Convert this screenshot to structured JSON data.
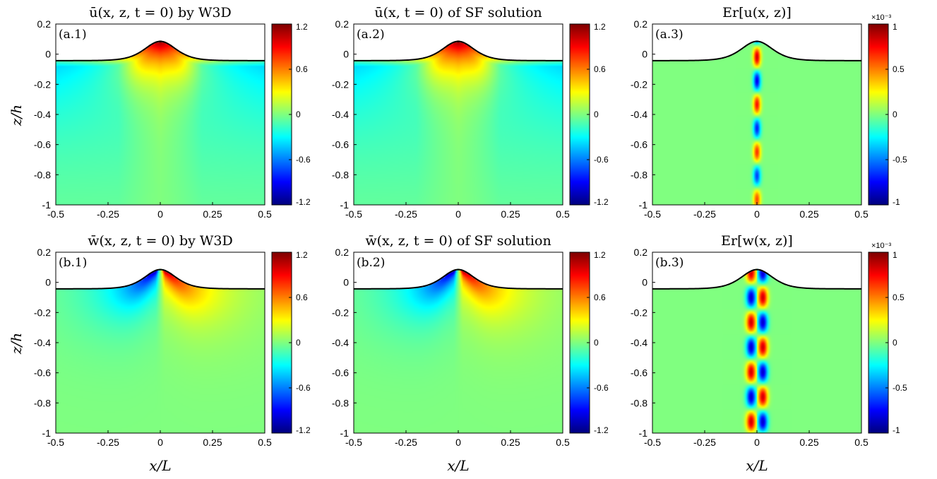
{
  "colors": {
    "frame": "#000000",
    "colormap": "jet",
    "surface_line": "#000000"
  },
  "labels": {
    "xlabel": "x/L",
    "ylabel": "z/h"
  },
  "chart_data": [
    {
      "id": "a1",
      "type": "heatmap",
      "field": "u",
      "source": "W3D",
      "title": "ū(x, z, t = 0) by W3D",
      "annotation": "(a.1)",
      "xlim": [
        -0.5,
        0.5
      ],
      "ylim": [
        -1,
        0.2
      ],
      "xticks": [
        "-0.5",
        "-0.25",
        "0",
        "0.25",
        "0.5"
      ],
      "yticks": [
        "0.2",
        "0",
        "-0.2",
        "-0.4",
        "-0.6",
        "-0.8",
        "-1"
      ],
      "colorbar": {
        "range": [
          -1.2,
          1.2
        ],
        "ticks": [
          "1.2",
          "0.6",
          "0",
          "-0.6",
          "-1.2"
        ],
        "exponent": ""
      }
    },
    {
      "id": "a2",
      "type": "heatmap",
      "field": "u",
      "source": "SF",
      "title": "ū(x, t = 0) of SF solution",
      "annotation": "(a.2)",
      "xlim": [
        -0.5,
        0.5
      ],
      "ylim": [
        -1,
        0.2
      ],
      "xticks": [
        "-0.5",
        "-0.25",
        "0",
        "0.25",
        "0.5"
      ],
      "yticks": [
        "0.2",
        "0",
        "-0.2",
        "-0.4",
        "-0.6",
        "-0.8",
        "-1"
      ],
      "colorbar": {
        "range": [
          -1.2,
          1.2
        ],
        "ticks": [
          "1.2",
          "0.6",
          "0",
          "-0.6",
          "-1.2"
        ],
        "exponent": ""
      }
    },
    {
      "id": "a3",
      "type": "heatmap",
      "field": "err_u",
      "source": "Er",
      "title": "Er[u(x, z)]",
      "annotation": "(a.3)",
      "xlim": [
        -0.5,
        0.5
      ],
      "ylim": [
        -1,
        0.2
      ],
      "xticks": [
        "-0.5",
        "-0.25",
        "0",
        "0.25",
        "0.5"
      ],
      "yticks": [
        "0.2",
        "0",
        "-0.2",
        "-0.4",
        "-0.6",
        "-0.8",
        "-1"
      ],
      "colorbar": {
        "range": [
          -1,
          1
        ],
        "ticks": [
          "1",
          "0.5",
          "0",
          "-0.5",
          "-1"
        ],
        "exponent": "×10⁻³"
      }
    },
    {
      "id": "b1",
      "type": "heatmap",
      "field": "w",
      "source": "W3D",
      "title": "w̄(x, z, t = 0) by W3D",
      "annotation": "(b.1)",
      "xlim": [
        -0.5,
        0.5
      ],
      "ylim": [
        -1,
        0.2
      ],
      "xticks": [
        "-0.5",
        "-0.25",
        "0",
        "0.25",
        "0.5"
      ],
      "yticks": [
        "0.2",
        "0",
        "-0.2",
        "-0.4",
        "-0.6",
        "-0.8",
        "-1"
      ],
      "colorbar": {
        "range": [
          -1.2,
          1.2
        ],
        "ticks": [
          "1.2",
          "0.6",
          "0",
          "-0.6",
          "-1.2"
        ],
        "exponent": ""
      }
    },
    {
      "id": "b2",
      "type": "heatmap",
      "field": "w",
      "source": "SF",
      "title": "w̄(x, z, t = 0) of SF solution",
      "annotation": "(b.2)",
      "xlim": [
        -0.5,
        0.5
      ],
      "ylim": [
        -1,
        0.2
      ],
      "xticks": [
        "-0.5",
        "-0.25",
        "0",
        "0.25",
        "0.5"
      ],
      "yticks": [
        "0.2",
        "0",
        "-0.2",
        "-0.4",
        "-0.6",
        "-0.8",
        "-1"
      ],
      "colorbar": {
        "range": [
          -1.2,
          1.2
        ],
        "ticks": [
          "1.2",
          "0.6",
          "0",
          "-0.6",
          "-1.2"
        ],
        "exponent": ""
      }
    },
    {
      "id": "b3",
      "type": "heatmap",
      "field": "err_w",
      "source": "Er",
      "title": "Er[w(x, z)]",
      "annotation": "(b.3)",
      "xlim": [
        -0.5,
        0.5
      ],
      "ylim": [
        -1,
        0.2
      ],
      "xticks": [
        "-0.5",
        "-0.25",
        "0",
        "0.25",
        "0.5"
      ],
      "yticks": [
        "0.2",
        "0",
        "-0.2",
        "-0.4",
        "-0.6",
        "-0.8",
        "-1"
      ],
      "colorbar": {
        "range": [
          -1,
          1
        ],
        "ticks": [
          "1",
          "0.5",
          "0",
          "-0.5",
          "-1"
        ],
        "exponent": "×10⁻³"
      }
    }
  ]
}
